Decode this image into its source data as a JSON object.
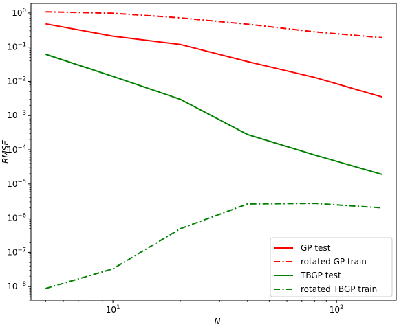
{
  "chart_data": {
    "type": "line",
    "title": "",
    "xlabel": "N",
    "ylabel": "RMSE",
    "xscale": "log",
    "yscale": "log",
    "xlim": [
      4.3,
      185
    ],
    "ylim": [
      4e-09,
      1.9
    ],
    "grid": false,
    "legend_position": "lower-right",
    "x_ticks": [
      {
        "value": 10,
        "base": "10",
        "exp": "1"
      },
      {
        "value": 100,
        "base": "10",
        "exp": "2"
      }
    ],
    "y_ticks": [
      {
        "value": 1,
        "base": "10",
        "exp": "0"
      },
      {
        "value": 0.1,
        "base": "10",
        "exp": "−1"
      },
      {
        "value": 0.01,
        "base": "10",
        "exp": "−2"
      },
      {
        "value": 0.001,
        "base": "10",
        "exp": "−3"
      },
      {
        "value": 0.0001,
        "base": "10",
        "exp": "−4"
      },
      {
        "value": 1e-05,
        "base": "10",
        "exp": "−5"
      },
      {
        "value": 1e-06,
        "base": "10",
        "exp": "−6"
      },
      {
        "value": 1e-07,
        "base": "10",
        "exp": "−7"
      },
      {
        "value": 1e-08,
        "base": "10",
        "exp": "−8"
      }
    ],
    "x": [
      5,
      10,
      20,
      40,
      80,
      160
    ],
    "series": [
      {
        "name": "GP test",
        "color": "#ff0000",
        "linestyle": "solid",
        "values": [
          0.48,
          0.21,
          0.12,
          0.038,
          0.013,
          0.0035
        ]
      },
      {
        "name": "rotated GP train",
        "color": "#ff0000",
        "linestyle": "dashdot",
        "values": [
          1.08,
          0.98,
          0.72,
          0.47,
          0.28,
          0.19
        ]
      },
      {
        "name": "TBGP test",
        "color": "#008000",
        "linestyle": "solid",
        "values": [
          0.062,
          0.014,
          0.003,
          0.00028,
          7e-05,
          1.9e-05
        ]
      },
      {
        "name": "rotated TBGP train",
        "color": "#008000",
        "linestyle": "dashdot",
        "values": [
          8.8e-09,
          3.3e-08,
          4.9e-07,
          2.6e-06,
          2.7e-06,
          2e-06
        ]
      }
    ]
  }
}
